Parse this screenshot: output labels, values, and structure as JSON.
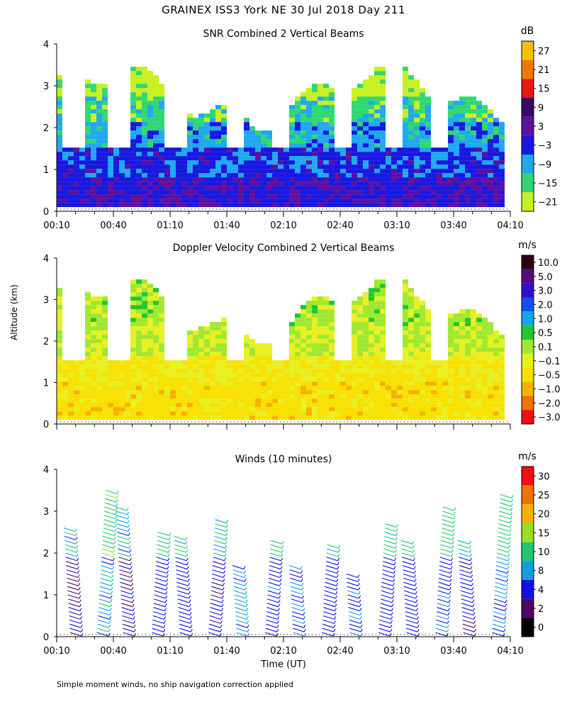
{
  "title": "GRAINEX ISS3 York NE  30 Jul 2018 Day 211",
  "ylabel": "Altitude (km)",
  "xlabel": "Time (UT)",
  "footnote": "Simple moment winds, no ship navigation correction applied",
  "chart_data": [
    {
      "type": "heatmap",
      "title": "SNR Combined 2 Vertical Beams",
      "colorbar_unit": "dB",
      "colorbar_ticks": [
        "27",
        "21",
        "15",
        "9",
        "3",
        "−3",
        "−9",
        "−15",
        "−21"
      ],
      "colorbar_colors": [
        "#f7c000",
        "#f07800",
        "#e81810",
        "#3a0860",
        "#6010a0",
        "#1818e0",
        "#20a8f0",
        "#30d870",
        "#c8f020"
      ],
      "x_ticks": [
        "00:10",
        "00:40",
        "01:10",
        "01:40",
        "02:10",
        "02:40",
        "03:10",
        "03:40",
        "04:10"
      ],
      "xlim_minutes": [
        10,
        250
      ],
      "ylim_km": [
        0,
        4
      ],
      "y_ticks": [
        0,
        1,
        2,
        3,
        4
      ],
      "layers_by_altitude_km": [
        {
          "from": 0.1,
          "to": 0.8,
          "dB": -1
        },
        {
          "from": 0.8,
          "to": 1.5,
          "dB": -4
        },
        {
          "from": 1.5,
          "to": 2.1,
          "dB": -9
        },
        {
          "from": 2.1,
          "to": 2.7,
          "dB": -15
        },
        {
          "from": 2.7,
          "to": 3.3,
          "dB": -21
        }
      ],
      "data_gaps_minutes": [
        [
          13,
          23
        ],
        [
          37,
          48
        ],
        [
          67,
          76
        ],
        [
          99,
          107
        ],
        [
          124,
          132
        ],
        [
          155,
          163
        ],
        [
          182,
          190
        ],
        [
          206,
          214
        ]
      ]
    },
    {
      "type": "heatmap",
      "title": "Doppler Velocity Combined 2 Vertical Beams",
      "colorbar_unit": "m/s",
      "colorbar_ticks": [
        "10.0",
        "5.0",
        "3.0",
        "2.0",
        "1.0",
        "0.5",
        "0.1",
        "−0.1",
        "−0.5",
        "−1.0",
        "−2.0",
        "−3.0"
      ],
      "colorbar_colors": [
        "#300018",
        "#5a0a80",
        "#3010c8",
        "#1050f0",
        "#10a8f0",
        "#20c830",
        "#a0e830",
        "#e8f020",
        "#f8e000",
        "#f8b000",
        "#f07000",
        "#f01010"
      ],
      "x_ticks": [
        "",
        "",
        "",
        "",
        "",
        "",
        "",
        "",
        ""
      ],
      "xlim_minutes": [
        10,
        250
      ],
      "ylim_km": [
        0,
        4
      ],
      "y_ticks": [
        0,
        1,
        2,
        3,
        4
      ],
      "layers_by_altitude_km": [
        {
          "from": 0.1,
          "to": 1.0,
          "ms": -0.5
        },
        {
          "from": 1.0,
          "to": 1.6,
          "ms": -0.3
        },
        {
          "from": 1.6,
          "to": 2.3,
          "ms": 0.0
        },
        {
          "from": 2.3,
          "to": 3.1,
          "ms": 0.1
        }
      ],
      "data_gaps_minutes": [
        [
          13,
          23
        ],
        [
          37,
          48
        ],
        [
          67,
          76
        ],
        [
          99,
          107
        ],
        [
          124,
          132
        ],
        [
          155,
          163
        ],
        [
          182,
          190
        ],
        [
          206,
          214
        ]
      ]
    },
    {
      "type": "wind-barbs",
      "title": "Winds (10 minutes)",
      "colorbar_unit": "m/s",
      "colorbar_ticks": [
        "30",
        "25",
        "20",
        "15",
        "10",
        "8",
        "4",
        "2",
        "0"
      ],
      "colorbar_colors": [
        "#f01010",
        "#f07000",
        "#f8b000",
        "#98e020",
        "#20c870",
        "#10a0e0",
        "#1010e0",
        "#500860",
        "#000000"
      ],
      "x_ticks": [
        "00:10",
        "00:40",
        "01:10",
        "01:40",
        "02:10",
        "02:40",
        "03:10",
        "03:40",
        "04:10"
      ],
      "xlim_minutes": [
        10,
        250
      ],
      "ylim_km": [
        0,
        4
      ],
      "y_ticks": [
        0,
        1,
        2,
        3,
        4
      ],
      "profiles": [
        {
          "time_min": 18,
          "top_km": 2.7,
          "speed_ms": 4
        },
        {
          "time_min": 32,
          "top_km": 3.6,
          "speed_ms": 9
        },
        {
          "time_min": 46,
          "top_km": 3.2,
          "speed_ms": 4
        },
        {
          "time_min": 61,
          "top_km": 2.6,
          "speed_ms": 6
        },
        {
          "time_min": 76,
          "top_km": 2.5,
          "speed_ms": 6
        },
        {
          "time_min": 91,
          "top_km": 2.9,
          "speed_ms": 5
        },
        {
          "time_min": 106,
          "top_km": 1.8,
          "speed_ms": 9
        },
        {
          "time_min": 121,
          "top_km": 2.4,
          "speed_ms": 7
        },
        {
          "time_min": 136,
          "top_km": 1.8,
          "speed_ms": 8
        },
        {
          "time_min": 151,
          "top_km": 2.3,
          "speed_ms": 6
        },
        {
          "time_min": 166,
          "top_km": 1.6,
          "speed_ms": 7
        },
        {
          "time_min": 181,
          "top_km": 2.8,
          "speed_ms": 6
        },
        {
          "time_min": 196,
          "top_km": 2.4,
          "speed_ms": 6
        },
        {
          "time_min": 211,
          "top_km": 3.2,
          "speed_ms": 7
        },
        {
          "time_min": 226,
          "top_km": 2.4,
          "speed_ms": 5
        },
        {
          "time_min": 241,
          "top_km": 3.5,
          "speed_ms": 8
        }
      ]
    }
  ]
}
